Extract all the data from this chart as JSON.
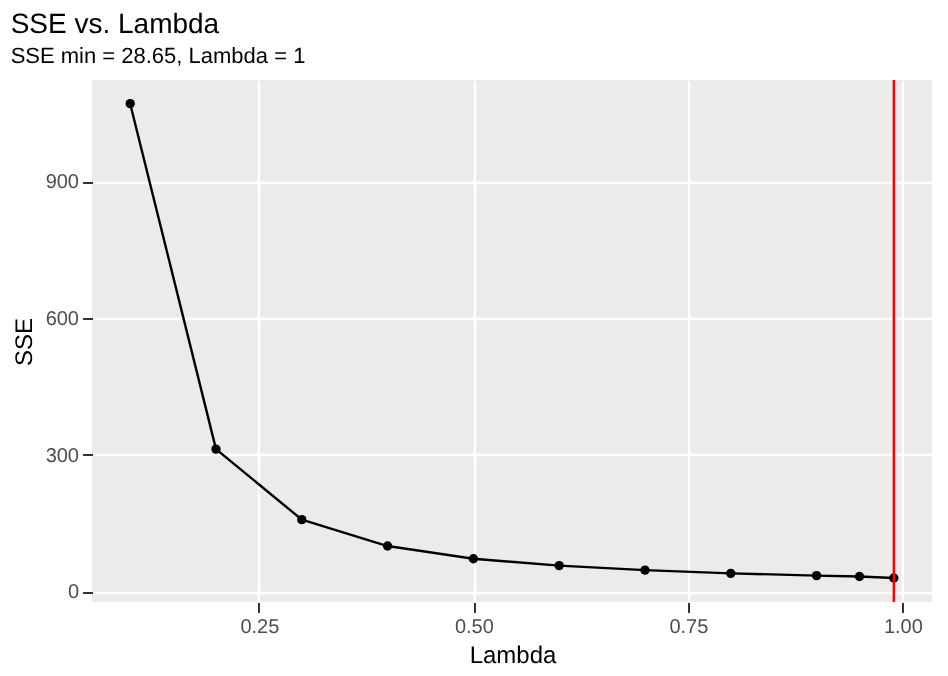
{
  "chart_data": {
    "type": "line",
    "title": "SSE vs. Lambda",
    "subtitle": "SSE min = 28.65, Lambda = 1",
    "xlabel": "Lambda",
    "ylabel": "SSE",
    "x": [
      0.1,
      0.2,
      0.3,
      0.4,
      0.5,
      0.6,
      0.7,
      0.8,
      0.9,
      0.95,
      0.99
    ],
    "series": [
      {
        "color": "#000000",
        "values": [
          1071,
          312,
          157,
          99,
          71,
          56,
          46,
          39,
          34,
          32,
          28.65
        ]
      }
    ],
    "xlim": [
      0.0555,
      1.0345
    ],
    "xticks": [
      {
        "value": 0.25,
        "label": "0.25"
      },
      {
        "value": 0.5,
        "label": "0.50"
      },
      {
        "value": 0.75,
        "label": "0.75"
      },
      {
        "value": 1.0,
        "label": "1.00"
      }
    ],
    "ylim": [
      -24,
      1123
    ],
    "yticks": [
      0,
      300,
      600,
      900
    ],
    "ref_lines": [
      {
        "axis": "x",
        "value": 0.99,
        "color": "#ff0000"
      }
    ],
    "grid": true,
    "marker": "circle",
    "line_style": "solid"
  }
}
